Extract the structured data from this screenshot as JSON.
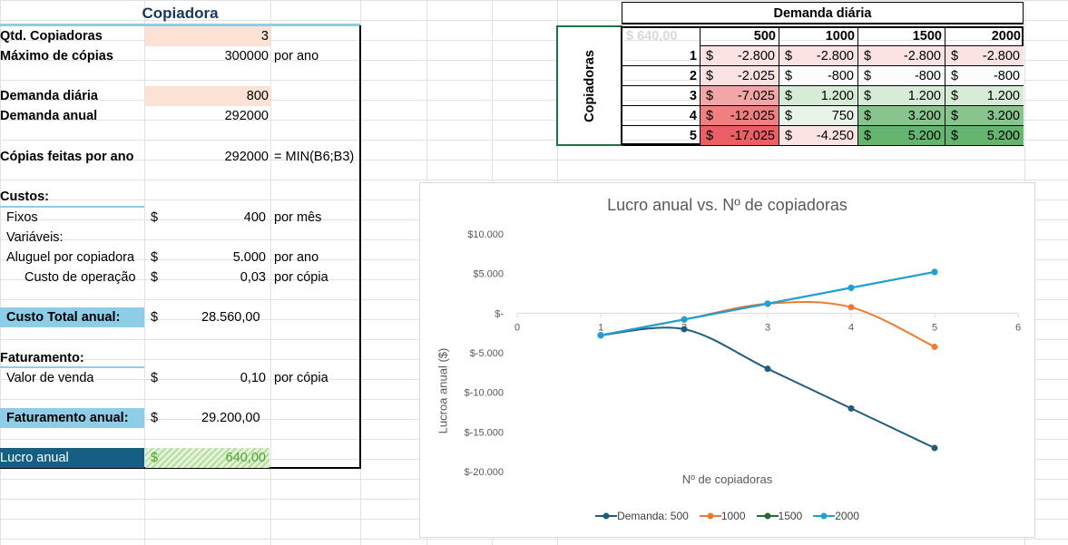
{
  "sheet": {
    "title": "Copiadora",
    "rows": [
      {
        "label": "Qtd. Copiadoras",
        "value": "3",
        "unit": ""
      },
      {
        "label": "Máximo de cópias",
        "value": "300000",
        "unit": "por ano"
      },
      {
        "label": "Demanda diária",
        "value": "800",
        "unit": ""
      },
      {
        "label": "Demanda anual",
        "value": "292000",
        "unit": ""
      },
      {
        "label": "Cópias feitas por ano",
        "value": "292000",
        "unit": "= MIN(B6;B3)"
      }
    ],
    "custos_heading": "Custos:",
    "fixos": {
      "label": "Fixos",
      "currency": "$",
      "value": "400",
      "unit": "por mês"
    },
    "variaveis": "Variáveis:",
    "aluguel": {
      "label": "Aluguel por copiadora",
      "currency": "$",
      "value": "5.000",
      "unit": "por ano"
    },
    "custo_operacao": {
      "label": "Custo de operação",
      "currency": "$",
      "value": "0,03",
      "unit": "por cópia"
    },
    "custo_total": {
      "label": "Custo Total anual:",
      "currency": "$",
      "value": "28.560,00"
    },
    "faturamento_heading": "Faturamento:",
    "valor_venda": {
      "label": "Valor de venda",
      "currency": "$",
      "value": "0,10",
      "unit": "por cópia"
    },
    "faturamento_anual": {
      "label": "Faturamento anual:",
      "currency": "$",
      "value": "29.200,00"
    },
    "lucro": {
      "label": "Lucro anual",
      "currency": "$",
      "value": "640,00"
    }
  },
  "datatable": {
    "header": "Demanda diária",
    "side_label": "Copiadoras",
    "corner": "$    640,00",
    "demands": [
      "500",
      "1000",
      "1500",
      "2000"
    ],
    "rows": [
      {
        "n": "1",
        "vals": [
          "-2.800",
          "-2.800",
          "-2.800",
          "-2.800"
        ]
      },
      {
        "n": "2",
        "vals": [
          "-2.025",
          "-800",
          "-800",
          "-800"
        ]
      },
      {
        "n": "3",
        "vals": [
          "-7.025",
          "1.200",
          "1.200",
          "1.200"
        ]
      },
      {
        "n": "4",
        "vals": [
          "-12.025",
          "750",
          "3.200",
          "3.200"
        ]
      },
      {
        "n": "5",
        "vals": [
          "-17.025",
          "-4.250",
          "5.200",
          "5.200"
        ]
      }
    ],
    "fills": [
      [
        "#fbe3e4",
        "#fbe3e4",
        "#fbe3e4",
        "#fbe3e4"
      ],
      [
        "#fbe3e4",
        "#fcfcff",
        "#fcfcff",
        "#fcfcff"
      ],
      [
        "#f3a6a7",
        "#d6ecd6",
        "#d6ecd6",
        "#d6ecd6"
      ],
      [
        "#f07f80",
        "#e7f4e7",
        "#88c48e",
        "#88c48e"
      ],
      [
        "#eb6065",
        "#fbe3e4",
        "#66b56f",
        "#66b56f"
      ]
    ]
  },
  "chart_data": {
    "type": "line",
    "title": "Lucro anual vs. Nº de copiadoras",
    "xlabel": "Nº de copiadoras",
    "ylabel": "Lucroa anual ($)",
    "xlim": [
      0,
      6
    ],
    "ylim": [
      -20000,
      10000
    ],
    "x_ticks": [
      "0",
      "1",
      "2",
      "3",
      "4",
      "5",
      "6"
    ],
    "y_ticks": [
      "$10.000",
      "$5.000",
      "$-",
      "$-5.000",
      "$-10.000",
      "$-15.000",
      "$-20.000"
    ],
    "x": [
      1,
      2,
      3,
      4,
      5
    ],
    "series": [
      {
        "name": "Demanda: 500",
        "color": "#1f5c80",
        "values": [
          -2800,
          -2025,
          -7025,
          -12025,
          -17025
        ]
      },
      {
        "name": "1000",
        "color": "#ee7b30",
        "values": [
          -2800,
          -800,
          1200,
          750,
          -4250
        ]
      },
      {
        "name": "1500",
        "color": "#1e6e2e",
        "values": [
          -2800,
          -800,
          1200,
          3200,
          5200
        ]
      },
      {
        "name": "2000",
        "color": "#1fa0d8",
        "values": [
          -2800,
          -800,
          1200,
          3200,
          5200
        ]
      }
    ]
  }
}
